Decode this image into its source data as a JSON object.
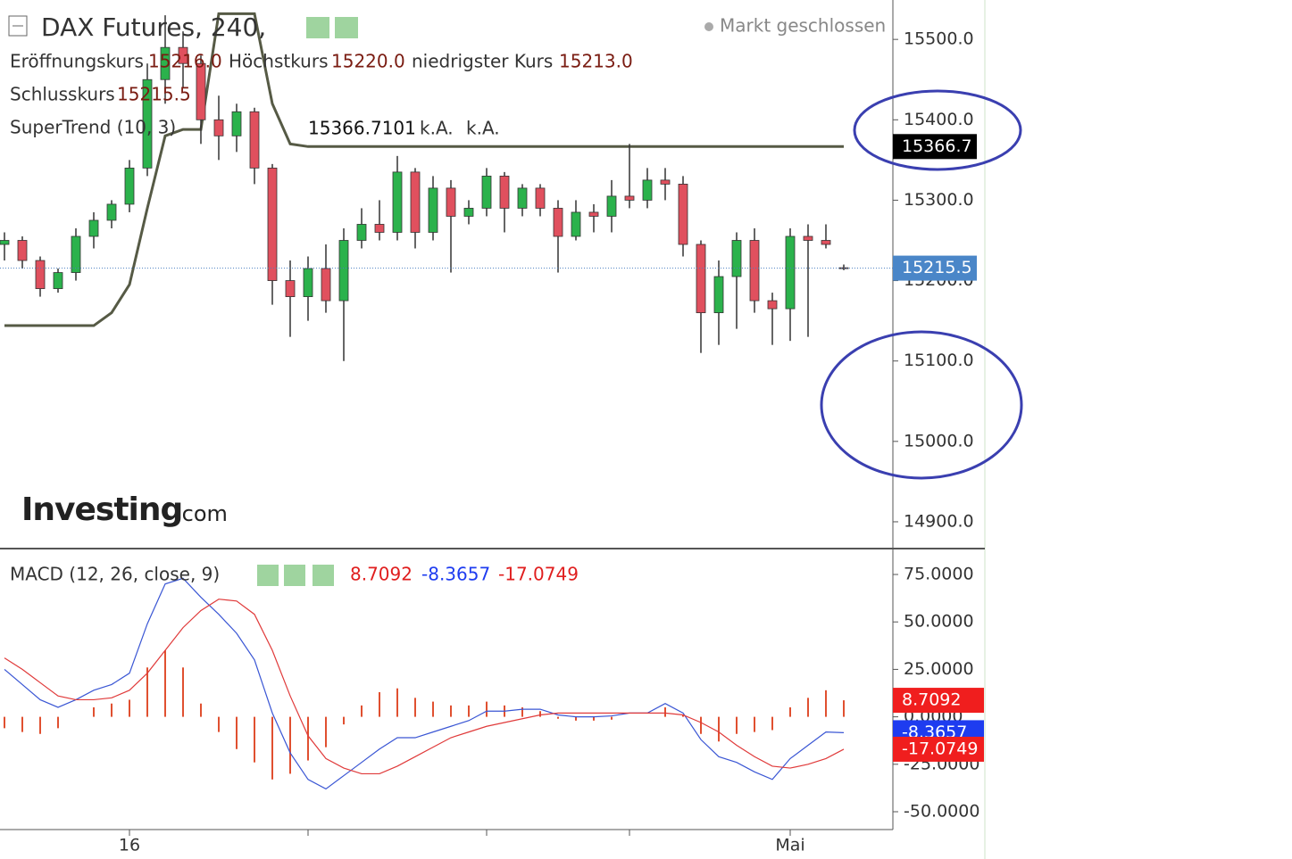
{
  "chart_data": [
    {
      "type": "candlestick",
      "title": "DAX Futures, 240,",
      "status": "Markt geschlossen",
      "watermark": "Investing",
      "watermark_suffix": ".com",
      "categories": [
        null,
        null,
        null,
        null,
        null,
        null,
        null,
        "16",
        null,
        null,
        null,
        null,
        null,
        null,
        null,
        null,
        null,
        null,
        null,
        null,
        null,
        null,
        null,
        null,
        null,
        null,
        null,
        null,
        null,
        null,
        null,
        null,
        null,
        null,
        null,
        null,
        null,
        null,
        null,
        null,
        null,
        null,
        null,
        null,
        "Mai",
        null,
        null,
        null
      ],
      "xticks": [
        7,
        17,
        27,
        35,
        44
      ],
      "open": [
        15245,
        15250,
        15225,
        15190,
        15210,
        15255,
        15275,
        15295,
        15340,
        15450,
        15490,
        15470,
        15400,
        15380,
        15410,
        15340,
        15200,
        15180,
        15215,
        15175,
        15250,
        15270,
        15260,
        15335,
        15260,
        15315,
        15280,
        15290,
        15330,
        15290,
        15315,
        15290,
        15255,
        15285,
        15280,
        15305,
        15300,
        15325,
        15320,
        15245,
        15160,
        15205,
        15250,
        15175,
        15165,
        15255,
        15250,
        15216.0
      ],
      "high": [
        15260,
        15255,
        15230,
        15215,
        15265,
        15285,
        15300,
        15350,
        15470,
        15530,
        15510,
        15480,
        15430,
        15420,
        15415,
        15345,
        15225,
        15230,
        15245,
        15265,
        15290,
        15300,
        15355,
        15340,
        15330,
        15325,
        15300,
        15340,
        15335,
        15320,
        15320,
        15300,
        15300,
        15295,
        15325,
        15370,
        15340,
        15340,
        15330,
        15250,
        15225,
        15260,
        15265,
        15185,
        15265,
        15270,
        15270,
        15220.0
      ],
      "low": [
        15225,
        15215,
        15180,
        15185,
        15200,
        15240,
        15265,
        15285,
        15330,
        15420,
        15440,
        15370,
        15350,
        15360,
        15320,
        15170,
        15130,
        15150,
        15160,
        15100,
        15240,
        15250,
        15250,
        15240,
        15250,
        15210,
        15270,
        15280,
        15260,
        15280,
        15280,
        15210,
        15250,
        15260,
        15260,
        15290,
        15290,
        15300,
        15230,
        15110,
        15120,
        15140,
        15160,
        15120,
        15125,
        15130,
        15240,
        15213.0
      ],
      "close": [
        15250,
        15225,
        15190,
        15210,
        15255,
        15275,
        15295,
        15340,
        15450,
        15490,
        15470,
        15400,
        15380,
        15410,
        15340,
        15200,
        15180,
        15215,
        15175,
        15250,
        15270,
        15260,
        15335,
        15260,
        15315,
        15280,
        15290,
        15330,
        15290,
        15315,
        15290,
        15255,
        15285,
        15280,
        15305,
        15300,
        15325,
        15320,
        15245,
        15160,
        15205,
        15250,
        15175,
        15165,
        15255,
        15250,
        15245,
        15215.5
      ],
      "up_color": "#2bb24c",
      "down_color": "#e0505e",
      "ohlc_names": {
        "open": "Eröffnungskurs",
        "high": "Höchstkurs",
        "low": "niedrigster Kurs",
        "close": "Schlusskurs"
      },
      "ohlc_labels": {
        "open": "15216.0",
        "high": "15220.0",
        "low": "15213.0"
      },
      "series": [
        {
          "name": "SuperTrend (10, 3)",
          "color": "#565a45",
          "values": [
            15144,
            15144,
            15144,
            15144,
            15144,
            15144,
            15160,
            15195,
            15290,
            15380,
            15388,
            15388,
            15532,
            15532,
            15532,
            15420,
            15370,
            15366.7101,
            15366.7101,
            15366.7101,
            15366.7101,
            15366.7101,
            15366.7101,
            15366.7101,
            15366.7101,
            15366.7101,
            15366.7101,
            15366.7101,
            15366.7101,
            15366.7101,
            15366.7101,
            15366.7101,
            15366.7101,
            15366.7101,
            15366.7101,
            15366.7101,
            15366.7101,
            15366.7101,
            15366.7101,
            15366.7101,
            15366.7101,
            15366.7101,
            15366.7101,
            15366.7101,
            15366.7101,
            15366.7101,
            15366.7101,
            15366.7101
          ],
          "last_value_label": "15366.7",
          "extra_labels": [
            "k.A.",
            "k.A."
          ]
        }
      ],
      "ylim": [
        14870,
        15549
      ],
      "yticks": [
        {
          "value": 14900,
          "label": "14900.0"
        },
        {
          "value": 15000,
          "label": "15000.0"
        },
        {
          "value": 15100,
          "label": "15100.0"
        },
        {
          "value": 15200,
          "label": "15200.0"
        },
        {
          "value": 15300,
          "label": "15300.0"
        },
        {
          "value": 15400,
          "label": "15400.0"
        },
        {
          "value": 15500,
          "label": "15500.0"
        }
      ],
      "grid": false
    },
    {
      "type": "macd",
      "title": "MACD (12, 26, close, 9)",
      "series": [
        {
          "kind": "histogram",
          "color": "#e05030",
          "values": [
            -6,
            -8,
            -9,
            -6,
            0,
            5,
            7,
            9,
            26,
            35,
            26,
            7,
            -8,
            -17,
            -24,
            -33,
            -30,
            -23,
            -16,
            -4,
            6,
            13,
            15,
            10,
            8,
            6,
            6,
            8,
            6,
            5,
            3,
            -1,
            -2,
            -2,
            -1.5,
            0,
            0,
            5,
            1,
            -9,
            -13,
            -9,
            -8,
            -7,
            5,
            10,
            14,
            8.7092
          ]
        },
        {
          "kind": "line",
          "color": "#3a56d4",
          "values": [
            25,
            17,
            9,
            5,
            9,
            14,
            17,
            23,
            49,
            70,
            73,
            63,
            54,
            44,
            30,
            2,
            -19,
            -33,
            -38,
            -31,
            -24,
            -17,
            -11,
            -11,
            -8,
            -5,
            -2,
            3,
            3,
            4,
            4,
            1,
            0,
            0,
            0.5,
            2,
            2,
            7,
            2,
            -12,
            -21,
            -24,
            -29,
            -33,
            -22,
            -15,
            -8,
            -8.3657
          ]
        },
        {
          "kind": "line",
          "color": "#e03a3a",
          "values": [
            31,
            25,
            18,
            11,
            9,
            9,
            10,
            14,
            23,
            35,
            47,
            56,
            62,
            61,
            54,
            35,
            11,
            -10,
            -22,
            -27,
            -30,
            -30,
            -26,
            -21,
            -16,
            -11,
            -8,
            -5,
            -3,
            -1,
            1,
            2,
            2,
            2,
            2,
            2,
            2,
            2,
            1,
            -3,
            -8,
            -15,
            -21,
            -26,
            -27,
            -25,
            -22,
            -17.0749
          ]
        }
      ],
      "chip_colors": [
        "#f01e1e",
        "#1e3cf0",
        "#f01e1e"
      ],
      "ylim": [
        -59.4,
        87.7
      ],
      "yticks": [
        {
          "value": -50,
          "label": "-50.0000"
        },
        {
          "value": -25,
          "label": "-25.0000"
        },
        {
          "value": 0,
          "label": "0.0000"
        },
        {
          "value": 25,
          "label": "25.0000"
        },
        {
          "value": 50,
          "label": "50.0000"
        },
        {
          "value": 75,
          "label": "75.0000"
        }
      ],
      "grid": false
    }
  ]
}
